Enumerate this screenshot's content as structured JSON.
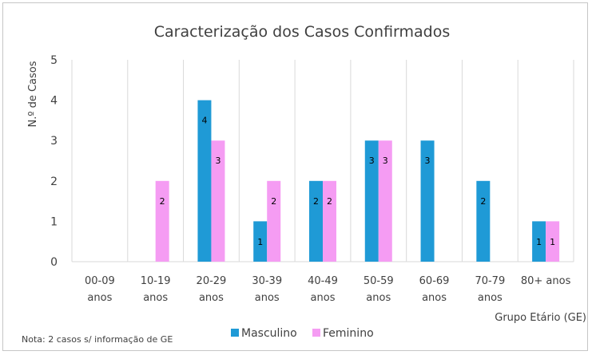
{
  "chart_data": {
    "type": "bar",
    "title": "Caracterização dos Casos Confirmados",
    "ylabel": "N.º de Casos",
    "xlabel": "Grupo Etário (GE)",
    "ylim": [
      0,
      5
    ],
    "yticks": [
      "0",
      "1",
      "2",
      "3",
      "4",
      "5"
    ],
    "categories": [
      [
        "00-09",
        "anos"
      ],
      [
        "10-19",
        "anos"
      ],
      [
        "20-29",
        "anos"
      ],
      [
        "30-39",
        "anos"
      ],
      [
        "40-49",
        "anos"
      ],
      [
        "50-59",
        "anos"
      ],
      [
        "60-69",
        "anos"
      ],
      [
        "70-79",
        "anos"
      ],
      [
        "80+ anos",
        ""
      ]
    ],
    "series": [
      {
        "name": "Masculino",
        "color": "#1f9ad6",
        "values": [
          0,
          0,
          4,
          1,
          2,
          3,
          3,
          2,
          1
        ]
      },
      {
        "name": "Feminino",
        "color": "#f59cf3",
        "values": [
          0,
          2,
          3,
          2,
          2,
          3,
          0,
          0,
          1
        ]
      }
    ],
    "grid": "vertical-separators",
    "legend": "bottom",
    "note": "Nota: 2 casos s/ informação de GE"
  }
}
